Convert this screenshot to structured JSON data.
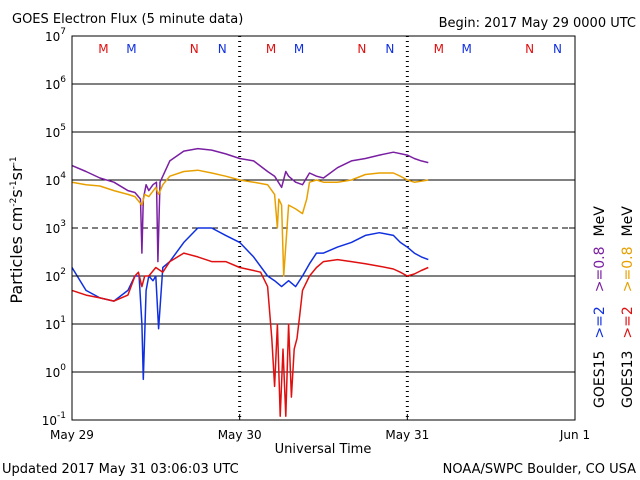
{
  "header": {
    "title": "GOES Electron Flux (5 minute data)",
    "begin": "Begin: 2017 May 29 0000 UTC"
  },
  "footer": {
    "updated": "Updated 2017 May 31 03:06:03 UTC",
    "credit": "NOAA/SWPC Boulder, CO USA"
  },
  "colors": {
    "purple": "#7a1fa2",
    "orange": "#e8a000",
    "blue": "#1030e0",
    "red": "#e01010",
    "manoeuvre_M_red": "#e01010",
    "manoeuvre_N_red": "#e01010",
    "manoeuvre_blue": "#1030e0"
  },
  "chart_data": {
    "type": "line",
    "title": "GOES Electron Flux (5 minute data)",
    "xlabel": "Universal Time",
    "ylabel": "Particles cm-2 s-1 sr-1",
    "y_scale": "log",
    "ylim": [
      0.1,
      10000000
    ],
    "xlim": [
      0,
      72
    ],
    "x_units": "hours since 2017 May 29 0000 UTC",
    "x_ticks": [
      {
        "x": 0,
        "label": "May 29"
      },
      {
        "x": 24,
        "label": "May 30"
      },
      {
        "x": 48,
        "label": "May 31"
      },
      {
        "x": 72,
        "label": "Jun 1"
      }
    ],
    "y_ticks": [
      {
        "exp": "7"
      },
      {
        "exp": "6"
      },
      {
        "exp": "5"
      },
      {
        "exp": "4"
      },
      {
        "exp": "3"
      },
      {
        "exp": "2"
      },
      {
        "exp": "1"
      },
      {
        "exp": "0"
      },
      {
        "exp": "-1"
      }
    ],
    "threshold_line": 1000,
    "manoeuvre_markers": [
      {
        "x": 4.5,
        "label": "M",
        "color": "red"
      },
      {
        "x": 8.5,
        "label": "M",
        "color": "blue"
      },
      {
        "x": 17.5,
        "label": "N",
        "color": "red"
      },
      {
        "x": 21.5,
        "label": "N",
        "color": "blue"
      },
      {
        "x": 28.5,
        "label": "M",
        "color": "red"
      },
      {
        "x": 32.5,
        "label": "M",
        "color": "blue"
      },
      {
        "x": 41.5,
        "label": "N",
        "color": "red"
      },
      {
        "x": 45.5,
        "label": "N",
        "color": "blue"
      },
      {
        "x": 52.5,
        "label": "M",
        "color": "red"
      },
      {
        "x": 56.5,
        "label": "M",
        "color": "blue"
      },
      {
        "x": 65.5,
        "label": "N",
        "color": "red"
      },
      {
        "x": 69.5,
        "label": "N",
        "color": "blue"
      }
    ],
    "legend": {
      "goes15": "GOES15",
      "goes13": "GOES13",
      "gt2": ">=2",
      "gt08": ">=0.8",
      "mev": "MeV"
    },
    "series": [
      {
        "name": "GOES15 >=0.8 MeV",
        "color": "purple",
        "x": [
          0,
          2,
          4,
          6,
          8,
          9,
          9.8,
          10.0,
          10.2,
          10.6,
          11,
          11.6,
          12.1,
          12.3,
          12.6,
          13,
          14,
          16,
          18,
          20,
          22,
          24,
          26,
          28,
          29,
          30,
          30.6,
          31,
          32,
          33,
          34,
          35,
          36,
          38,
          40,
          42,
          44,
          46,
          48,
          49,
          50,
          51
        ],
        "y": [
          20000,
          15000,
          11000,
          9000,
          6000,
          5500,
          4000,
          300,
          4000,
          8000,
          6000,
          8000,
          9000,
          200,
          9000,
          12000,
          25000,
          40000,
          45000,
          42000,
          35000,
          28000,
          25000,
          15000,
          12000,
          7000,
          15000,
          12000,
          9000,
          8000,
          14000,
          12000,
          11000,
          18000,
          25000,
          28000,
          33000,
          38000,
          33000,
          28000,
          25000,
          23000
        ]
      },
      {
        "name": "GOES13 >=0.8 MeV",
        "color": "orange",
        "x": [
          0,
          2,
          4,
          6,
          8,
          9,
          10.0,
          10.4,
          11,
          12,
          12.4,
          13,
          14,
          16,
          18,
          20,
          22,
          24,
          26,
          28,
          29,
          29.4,
          29.6,
          30.0,
          30.3,
          31,
          32,
          33,
          33.6,
          34,
          35,
          36,
          38,
          40,
          42,
          44,
          46,
          47,
          48,
          49,
          50,
          51
        ],
        "y": [
          9000,
          8000,
          7500,
          6000,
          5000,
          4500,
          3000,
          5000,
          4500,
          7000,
          5000,
          8000,
          12000,
          15000,
          16000,
          14000,
          12000,
          10000,
          9000,
          8000,
          5000,
          1000,
          4000,
          3000,
          100,
          3000,
          2500,
          2000,
          4000,
          9000,
          10000,
          9000,
          9000,
          10000,
          13000,
          14000,
          14000,
          12000,
          10000,
          9000,
          9500,
          10000
        ]
      },
      {
        "name": "GOES15 >=2 MeV",
        "color": "blue",
        "x": [
          0,
          2,
          4,
          6,
          8,
          9,
          9.6,
          10.0,
          10.2,
          10.6,
          11,
          11.6,
          12.0,
          12.4,
          13,
          14,
          16,
          18,
          20,
          22,
          24,
          26,
          28,
          29,
          30,
          31,
          32,
          33,
          34,
          35,
          36,
          38,
          40,
          42,
          44,
          46,
          47,
          48,
          49,
          50,
          51
        ],
        "y": [
          150,
          50,
          35,
          30,
          50,
          100,
          100,
          10,
          0.7,
          50,
          100,
          80,
          100,
          8,
          150,
          200,
          500,
          1000,
          1000,
          700,
          500,
          250,
          100,
          80,
          60,
          80,
          60,
          100,
          180,
          300,
          300,
          400,
          500,
          700,
          800,
          700,
          500,
          400,
          300,
          250,
          220
        ]
      },
      {
        "name": "GOES13 >=2 MeV",
        "color": "red",
        "x": [
          0,
          2,
          4,
          6,
          8,
          9,
          9.5,
          10.0,
          10.4,
          11,
          12,
          13,
          14,
          16,
          18,
          20,
          22,
          24,
          26,
          27,
          28,
          28.6,
          29.0,
          29.4,
          29.8,
          30.2,
          30.6,
          31.0,
          31.4,
          31.8,
          32.2,
          32.6,
          33,
          34,
          35,
          36,
          38,
          40,
          42,
          44,
          46,
          47,
          48,
          49,
          50,
          51
        ],
        "y": [
          50,
          40,
          35,
          30,
          40,
          100,
          120,
          60,
          100,
          100,
          150,
          120,
          200,
          300,
          250,
          200,
          200,
          150,
          130,
          120,
          60,
          5,
          0.5,
          10,
          0.12,
          3,
          0.12,
          10,
          0.3,
          3,
          5,
          15,
          50,
          100,
          150,
          200,
          220,
          200,
          180,
          160,
          140,
          120,
          100,
          110,
          130,
          150
        ]
      }
    ]
  }
}
